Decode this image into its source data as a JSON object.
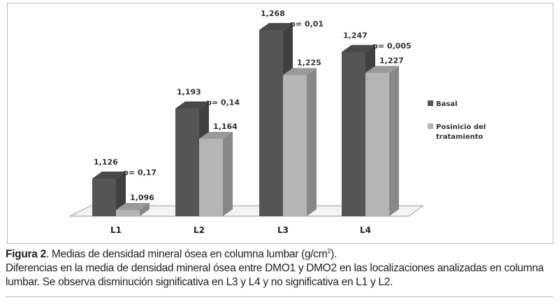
{
  "chart_data": {
    "type": "bar",
    "style": "3d-clustered",
    "categories": [
      "L1",
      "L2",
      "L3",
      "L4"
    ],
    "series": [
      {
        "name": "Basal",
        "values": [
          1.126,
          1.193,
          1.268,
          1.247
        ],
        "labels": [
          "1,126",
          "1,193",
          "1,268",
          "1,247"
        ],
        "color": "#555555"
      },
      {
        "name": "Posinicio del tratamiento",
        "values": [
          1.096,
          1.164,
          1.225,
          1.227
        ],
        "labels": [
          "1,096",
          "1,164",
          "1,225",
          "1,227"
        ],
        "color": "#b5b5b5"
      }
    ],
    "annotations": [
      "p= 0,17",
      "p= 0,14",
      "p= 0,01",
      "p= 0,005"
    ],
    "ylim": [
      1.09,
      1.29
    ],
    "legend": "right",
    "legend_lines": [
      [
        "Basal"
      ],
      [
        "Posinicio del",
        "tratamiento"
      ]
    ]
  },
  "caption": {
    "label": "Figura 2",
    "title": ". Medias de densidad mineral ósea en columna lumbar (g/cm",
    "sup": "2",
    "title_end": ").",
    "body": "Diferencias en la media de densidad mineral ósea entre DMO1 y DMO2 en las localizaciones analizadas en columna lumbar. Se observa disminución significativa en L3 y L4 y no significativa en L1 y L2."
  }
}
